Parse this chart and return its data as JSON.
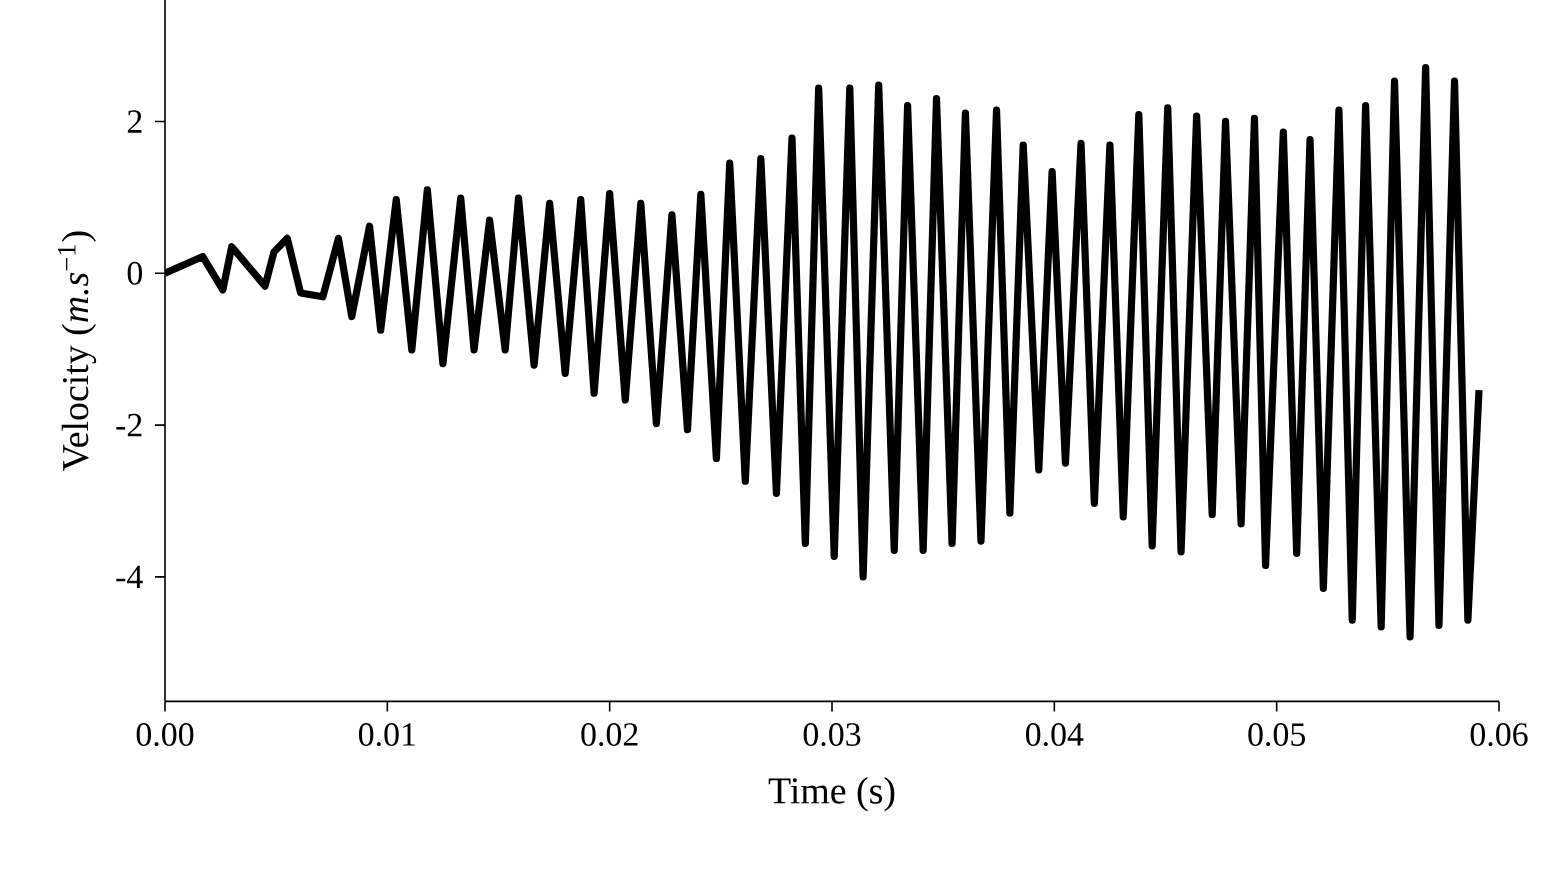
{
  "chart_data": {
    "type": "line",
    "xlabel": "Time (s)",
    "ylabel": "Velocity (*m.s*$^{−1}$)",
    "xlim": [
      0,
      0.06
    ],
    "ylim": [
      -5.64,
      3.6
    ],
    "xticks": [
      {
        "value": 0,
        "label": "0.00"
      },
      {
        "value": 0.01,
        "label": "0.01"
      },
      {
        "value": 0.02,
        "label": "0.02"
      },
      {
        "value": 0.03,
        "label": "0.03"
      },
      {
        "value": 0.04,
        "label": "0.04"
      },
      {
        "value": 0.05,
        "label": "0.05"
      },
      {
        "value": 0.06,
        "label": "0.06"
      }
    ],
    "yticks": [
      -4,
      -2,
      0,
      2
    ],
    "series": [
      {
        "color": "#000000",
        "x": [
          0,
          0.0017,
          0.0026,
          0.003,
          0.0045,
          0.0049,
          0.0055,
          0.0061,
          0.0071,
          0.0078,
          0.0084,
          0.0092,
          0.0097,
          0.0104,
          0.0111,
          0.0118,
          0.0125,
          0.0133,
          0.0139,
          0.0146,
          0.0153,
          0.0159,
          0.0166,
          0.0173,
          0.018,
          0.0187,
          0.0193,
          0.02,
          0.0207,
          0.0214,
          0.0221,
          0.0228,
          0.0235,
          0.0241,
          0.0248,
          0.0254,
          0.0261,
          0.0268,
          0.0275,
          0.0282,
          0.0288,
          0.0294,
          0.0301,
          0.0308,
          0.0314,
          0.0321,
          0.0328,
          0.0334,
          0.0341,
          0.0347,
          0.0354,
          0.036,
          0.0367,
          0.0374,
          0.038,
          0.0386,
          0.0393,
          0.0399,
          0.0405,
          0.0412,
          0.0418,
          0.0425,
          0.0431,
          0.0438,
          0.0444,
          0.0451,
          0.0457,
          0.0464,
          0.0471,
          0.0477,
          0.0484,
          0.049,
          0.0495,
          0.0503,
          0.0509,
          0.0515,
          0.0521,
          0.0528,
          0.0534,
          0.054,
          0.0547,
          0.0553,
          0.056,
          0.0567,
          0.0573,
          0.058,
          0.0586,
          0.0591
        ],
        "values": [
          0,
          0.22,
          -0.22,
          0.35,
          -0.17,
          0.28,
          0.46,
          -0.26,
          -0.31,
          0.46,
          -0.57,
          0.62,
          -0.75,
          0.97,
          -1.01,
          1.1,
          -1.19,
          0.99,
          -1.01,
          0.7,
          -1.01,
          0.99,
          -1.21,
          0.92,
          -1.32,
          0.97,
          -1.58,
          1.05,
          -1.67,
          0.92,
          -1.98,
          0.77,
          -2.06,
          1.04,
          -2.44,
          1.45,
          -2.74,
          1.51,
          -2.9,
          1.78,
          -3.56,
          2.44,
          -3.73,
          2.44,
          -4.0,
          2.48,
          -3.65,
          2.21,
          -3.65,
          2.3,
          -3.56,
          2.11,
          -3.53,
          2.15,
          -3.16,
          1.69,
          -2.59,
          1.34,
          -2.5,
          1.71,
          -3.03,
          1.69,
          -3.21,
          2.09,
          -3.59,
          2.18,
          -3.67,
          2.07,
          -3.18,
          2.0,
          -3.3,
          2.04,
          -3.85,
          1.86,
          -3.69,
          1.76,
          -4.15,
          2.15,
          -4.57,
          2.21,
          -4.66,
          2.53,
          -4.79,
          2.71,
          -4.64,
          2.53,
          -4.57,
          -1.54
        ]
      }
    ]
  }
}
